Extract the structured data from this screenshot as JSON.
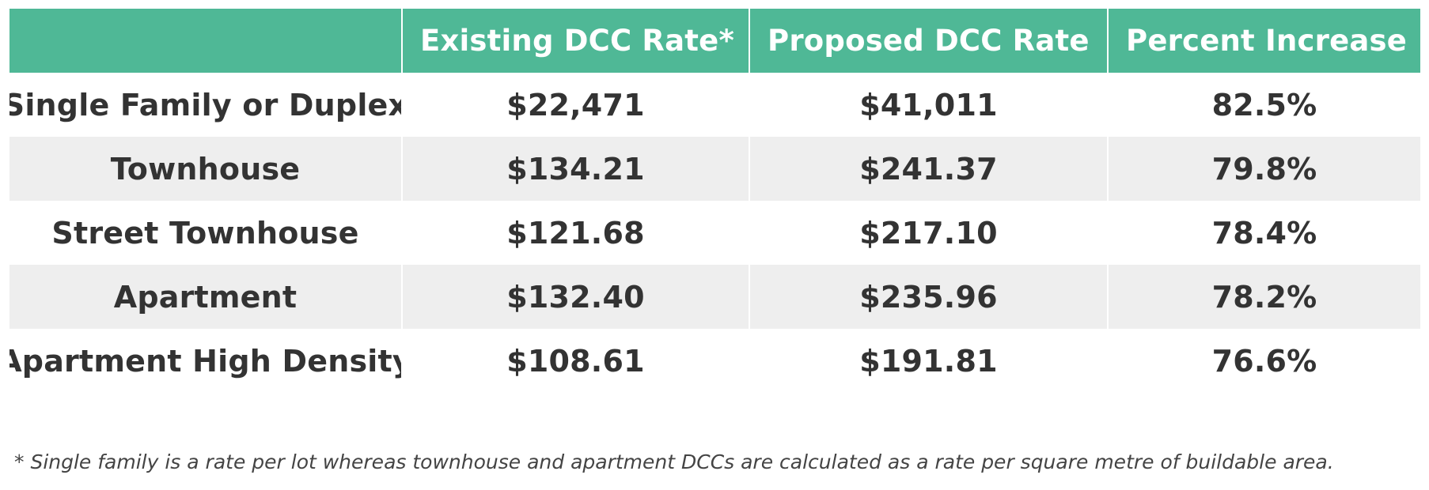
{
  "table": {
    "headers": [
      "",
      "Existing DCC Rate*",
      "Proposed DCC Rate",
      "Percent Increase"
    ],
    "rows": [
      {
        "type": "Single Family or Duplex",
        "existing": "$22,471",
        "proposed": "$41,011",
        "increase": "82.5%"
      },
      {
        "type": "Townhouse",
        "existing": "$134.21",
        "proposed": "$241.37",
        "increase": "79.8%"
      },
      {
        "type": "Street Townhouse",
        "existing": "$121.68",
        "proposed": "$217.10",
        "increase": "78.4%"
      },
      {
        "type": "Apartment",
        "existing": "$132.40",
        "proposed": "$235.96",
        "increase": "78.2%"
      },
      {
        "type": "Apartment High Density",
        "existing": "$108.61",
        "proposed": "$191.81",
        "increase": "76.6%"
      }
    ]
  },
  "footnote": "* Single family is a rate per lot whereas townhouse and apartment DCCs are calculated as a rate per square metre of buildable area.",
  "colors": {
    "header_background": "#4fb896",
    "header_text": "#ffffff",
    "shaded_row": "#eeeeee",
    "body_text": "#333333"
  }
}
